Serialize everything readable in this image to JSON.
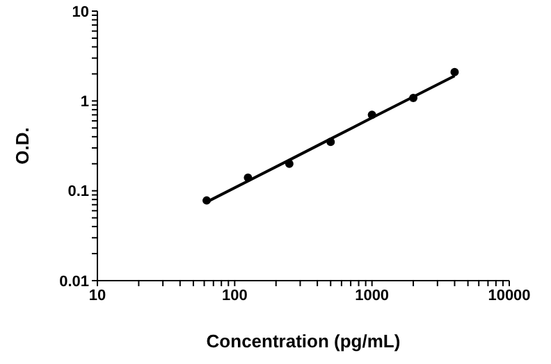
{
  "chart_data": {
    "type": "scatter",
    "xlabel": "Concentration (pg/mL)",
    "ylabel": "O.D.",
    "log": "xy",
    "grid": false,
    "legend": false,
    "xlim": [
      10,
      10000
    ],
    "ylim": [
      0.01,
      10
    ],
    "xticks": [
      10,
      {
        "value": 20,
        "label": null
      },
      {
        "value": 30,
        "label": null
      },
      {
        "value": 40,
        "label": null
      },
      {
        "value": 50,
        "label": null
      },
      {
        "value": 60,
        "label": null
      },
      {
        "value": 70,
        "label": null
      },
      {
        "value": 80,
        "label": null
      },
      {
        "value": 90,
        "label": null
      },
      100,
      {
        "value": 200,
        "label": null
      },
      {
        "value": 300,
        "label": null
      },
      {
        "value": 400,
        "label": null
      },
      {
        "value": 500,
        "label": null
      },
      {
        "value": 600,
        "label": null
      },
      {
        "value": 700,
        "label": null
      },
      {
        "value": 800,
        "label": null
      },
      {
        "value": 900,
        "label": null
      },
      1000,
      {
        "value": 2000,
        "label": null
      },
      {
        "value": 3000,
        "label": null
      },
      {
        "value": 4000,
        "label": null
      },
      {
        "value": 5000,
        "label": null
      },
      {
        "value": 6000,
        "label": null
      },
      {
        "value": 7000,
        "label": null
      },
      {
        "value": 8000,
        "label": null
      },
      {
        "value": 9000,
        "label": null
      },
      10000
    ],
    "yticks": [
      0.01,
      {
        "value": 0.02,
        "label": null
      },
      {
        "value": 0.03,
        "label": null
      },
      {
        "value": 0.04,
        "label": null
      },
      {
        "value": 0.05,
        "label": null
      },
      {
        "value": 0.06,
        "label": null
      },
      {
        "value": 0.07,
        "label": null
      },
      {
        "value": 0.08,
        "label": null
      },
      {
        "value": 0.09,
        "label": null
      },
      0.1,
      {
        "value": 0.2,
        "label": null
      },
      {
        "value": 0.3,
        "label": null
      },
      {
        "value": 0.4,
        "label": null
      },
      {
        "value": 0.5,
        "label": null
      },
      {
        "value": 0.6,
        "label": null
      },
      {
        "value": 0.7,
        "label": null
      },
      {
        "value": 0.8,
        "label": null
      },
      {
        "value": 0.9,
        "label": null
      },
      1,
      {
        "value": 2,
        "label": null
      },
      {
        "value": 3,
        "label": null
      },
      {
        "value": 4,
        "label": null
      },
      {
        "value": 5,
        "label": null
      },
      {
        "value": 6,
        "label": null
      },
      {
        "value": 7,
        "label": null
      },
      {
        "value": 8,
        "label": null
      },
      {
        "value": 9,
        "label": null
      },
      10
    ],
    "series": [
      {
        "marker": "circle",
        "color": "#000000",
        "x": [
          62.5,
          125,
          250,
          500,
          1000,
          2000,
          4000
        ],
        "values": [
          0.078,
          0.14,
          0.2,
          0.35,
          0.7,
          1.08,
          2.1
        ]
      },
      {
        "type": "line",
        "color": "#000000",
        "line_style": "solid",
        "x": [
          62.5,
          250,
          1000,
          4000
        ],
        "values": [
          0.075,
          0.22,
          0.65,
          1.9
        ]
      }
    ]
  }
}
